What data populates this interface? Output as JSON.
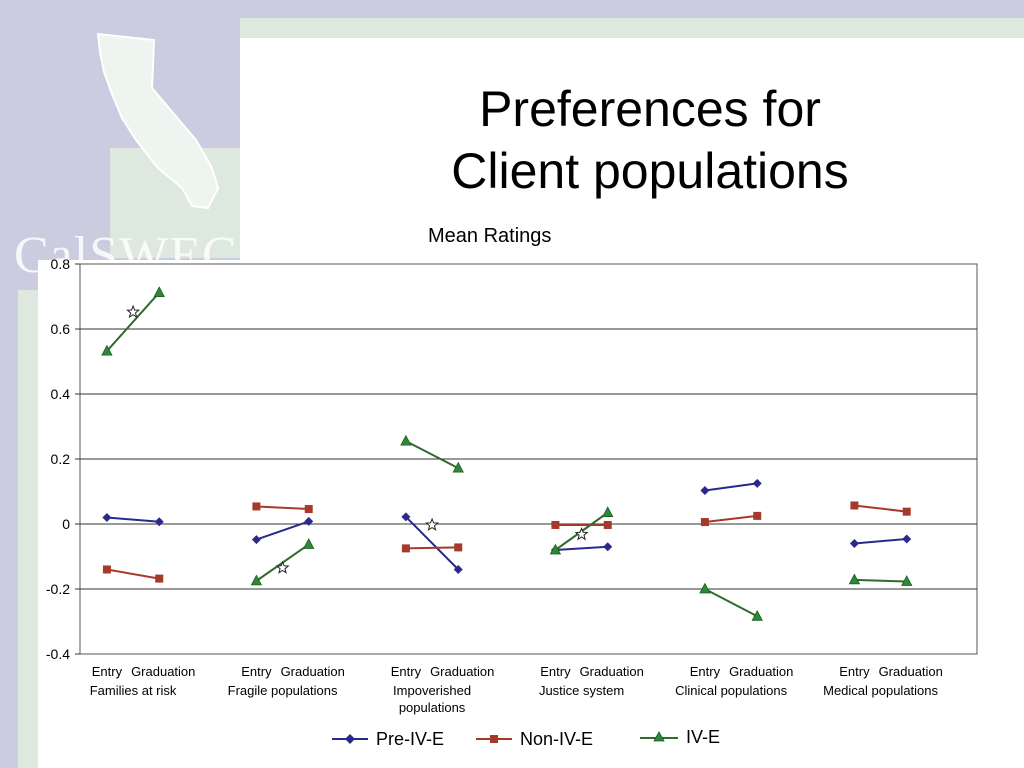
{
  "slide": {
    "title_line1": "Preferences for",
    "title_line2": "Client populations",
    "subtitle": "Mean Ratings",
    "logo_text": "CalSWEC"
  },
  "colors": {
    "pre": "#2a2a8c",
    "non": "#a63a2a",
    "ive": "#2e6b2e",
    "ive_marker": "#2a8a3a"
  },
  "chart_data": {
    "type": "line",
    "ylim": [
      -0.4,
      0.8
    ],
    "yticks": [
      -0.4,
      -0.2,
      0,
      0.2,
      0.4,
      0.6,
      0.8
    ],
    "ytick_labels": [
      "-0.4",
      "-0.2",
      "0",
      "0.2",
      "0.4",
      "0.6",
      "0.8"
    ],
    "grid": true,
    "x_labels": [
      "Entry",
      "Graduation"
    ],
    "groups": [
      {
        "label": "Families at risk",
        "pre": [
          0.02,
          0.007
        ],
        "non": [
          -0.14,
          -0.168
        ],
        "ive": [
          0.532,
          0.712
        ],
        "star": 0.652
      },
      {
        "label": "Fragile populations",
        "pre": [
          -0.048,
          0.008
        ],
        "non": [
          0.054,
          0.046
        ],
        "ive": [
          -0.175,
          -0.063
        ],
        "star": -0.135
      },
      {
        "label": "Impoverished populations",
        "label_lines": [
          "Impoverished",
          "populations"
        ],
        "pre": [
          0.022,
          -0.14
        ],
        "non": [
          -0.075,
          -0.072
        ],
        "ive": [
          0.255,
          0.172
        ],
        "star": -0.003
      },
      {
        "label": "Justice system",
        "pre": [
          -0.08,
          -0.07
        ],
        "non": [
          -0.003,
          -0.003
        ],
        "ive": [
          -0.08,
          0.035
        ],
        "star": -0.032
      },
      {
        "label": "Clinical populations",
        "pre": [
          0.103,
          0.125
        ],
        "non": [
          0.006,
          0.025
        ],
        "ive": [
          -0.2,
          -0.284
        ],
        "star": null
      },
      {
        "label": "Medical populations",
        "pre": [
          -0.06,
          -0.046
        ],
        "non": [
          0.057,
          0.038
        ],
        "ive": [
          -0.172,
          -0.177
        ],
        "star": null
      }
    ],
    "series": [
      {
        "key": "pre",
        "name": "Pre-IV-E",
        "marker": "diamond"
      },
      {
        "key": "non",
        "name": "Non-IV-E",
        "marker": "square"
      },
      {
        "key": "ive",
        "name": "IV-E",
        "marker": "triangle"
      }
    ]
  }
}
